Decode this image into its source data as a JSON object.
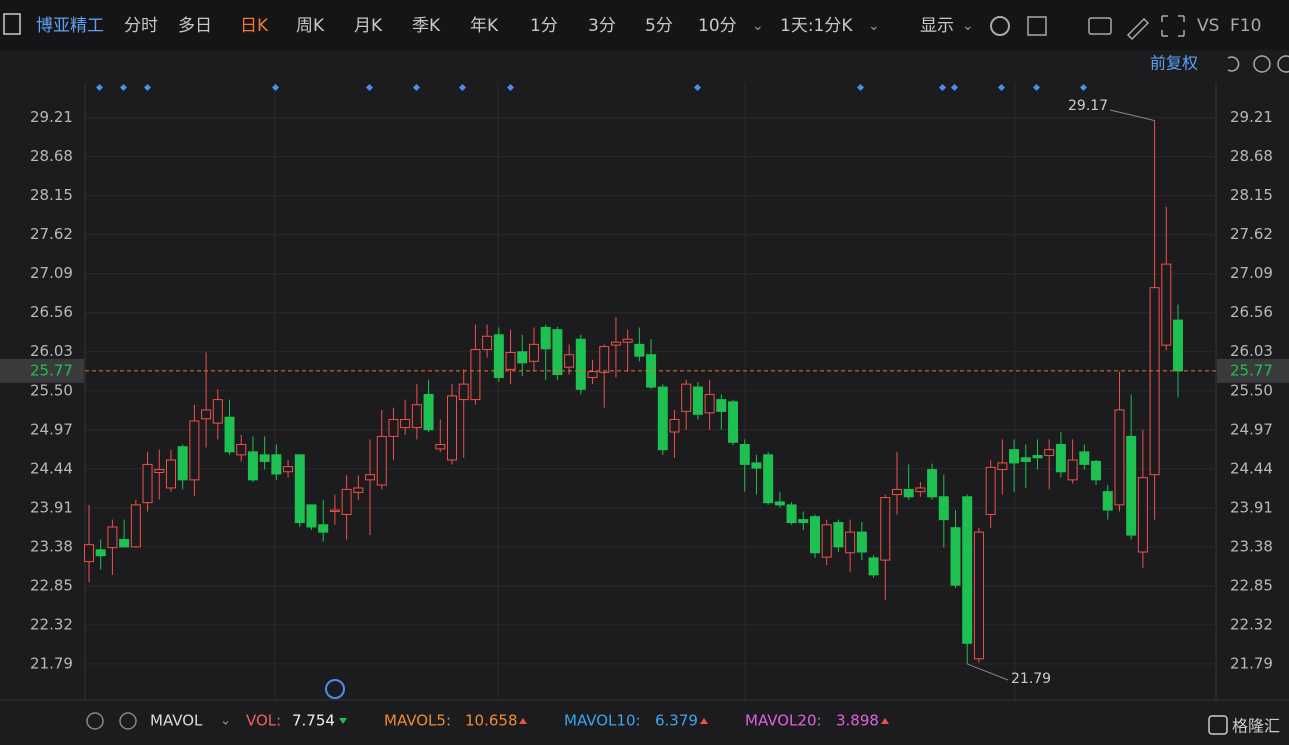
{
  "toolbar": {
    "stock": "博亚精工",
    "tabs": [
      "分时",
      "多日",
      "日K",
      "周K",
      "月K",
      "季K",
      "年K",
      "1分",
      "3分",
      "5分",
      "10分"
    ],
    "range": "1天:1分K",
    "display": "显示",
    "vs": "VS",
    "f10": "F10"
  },
  "adjust": "前复权",
  "chart_data": {
    "type": "candlestick",
    "open": [
      23.18,
      23.34,
      23.37,
      23.48,
      23.38,
      23.98,
      24.39,
      24.18,
      24.74,
      24.29,
      25.12,
      25.06,
      25.14,
      24.63,
      24.67,
      24.63,
      24.63,
      24.4,
      24.63,
      23.95,
      23.68,
      23.86,
      23.82,
      24.12,
      24.29,
      24.22,
      24.88,
      25.0,
      25.0,
      25.45,
      24.71,
      24.56,
      25.38,
      25.38,
      26.06,
      26.26,
      25.79,
      26.03,
      25.9,
      26.36,
      26.33,
      25.82,
      26.2,
      25.68,
      25.75,
      26.12,
      26.16,
      26.13,
      25.99,
      25.55,
      24.94,
      25.22,
      25.55,
      25.2,
      25.38,
      25.35,
      24.77,
      24.52,
      24.63,
      23.99,
      23.95,
      23.75,
      23.79,
      23.24,
      23.71,
      23.3,
      23.58,
      23.23,
      23.2,
      24.09,
      24.16,
      24.13,
      24.43,
      24.06,
      23.64,
      24.06,
      21.86,
      23.82,
      24.43,
      24.7,
      24.59,
      24.62,
      24.62,
      24.77,
      24.29,
      24.67,
      24.54,
      24.13,
      23.95,
      24.88,
      23.31,
      24.36,
      26.12,
      26.46
    ],
    "high": [
      23.95,
      23.48,
      23.75,
      23.75,
      24.02,
      24.67,
      24.7,
      24.7,
      24.77,
      25.31,
      26.02,
      25.52,
      25.38,
      24.9,
      24.88,
      24.88,
      24.77,
      24.56,
      24.63,
      23.95,
      24.02,
      24.09,
      24.35,
      24.35,
      24.84,
      25.24,
      25.27,
      25.38,
      25.59,
      25.65,
      25.11,
      25.59,
      25.79,
      26.4,
      26.4,
      26.36,
      26.33,
      26.26,
      26.36,
      26.4,
      26.37,
      26.13,
      26.26,
      25.92,
      26.13,
      26.5,
      26.33,
      26.36,
      26.2,
      25.59,
      25.24,
      25.65,
      25.62,
      25.65,
      25.45,
      25.38,
      24.84,
      24.63,
      24.67,
      24.13,
      23.99,
      23.86,
      23.82,
      23.75,
      23.75,
      23.75,
      23.72,
      23.27,
      24.09,
      24.67,
      24.5,
      24.26,
      24.51,
      24.36,
      23.88,
      24.09,
      23.64,
      24.56,
      24.84,
      24.84,
      24.77,
      24.84,
      24.84,
      24.94,
      24.84,
      24.77,
      24.56,
      24.22,
      25.76,
      25.45,
      24.97,
      29.17,
      28.0,
      26.67
    ],
    "low": [
      22.9,
      23.07,
      23.0,
      23.37,
      23.37,
      23.86,
      24.02,
      24.13,
      24.16,
      24.07,
      24.73,
      24.84,
      24.63,
      24.54,
      24.26,
      24.43,
      24.29,
      24.32,
      23.65,
      23.61,
      23.45,
      23.68,
      23.48,
      24.02,
      23.54,
      24.16,
      24.56,
      24.9,
      24.84,
      24.94,
      24.67,
      24.5,
      24.59,
      25.31,
      25.95,
      25.62,
      25.59,
      25.7,
      25.76,
      25.65,
      25.65,
      25.72,
      25.45,
      25.59,
      25.27,
      25.68,
      25.76,
      25.9,
      25.52,
      24.63,
      24.59,
      24.97,
      25.11,
      24.97,
      24.97,
      24.76,
      24.13,
      24.09,
      23.95,
      23.91,
      23.68,
      23.61,
      23.23,
      23.13,
      23.31,
      23.04,
      23.2,
      22.96,
      22.66,
      23.82,
      24.02,
      24.06,
      24.02,
      23.37,
      22.82,
      21.79,
      21.81,
      23.64,
      24.09,
      24.13,
      24.18,
      24.43,
      24.16,
      24.32,
      24.24,
      24.43,
      24.22,
      23.75,
      23.86,
      23.48,
      23.09,
      23.75,
      26.05,
      25.41
    ],
    "close": [
      23.41,
      23.26,
      23.65,
      23.38,
      23.95,
      24.5,
      24.43,
      24.56,
      24.29,
      25.09,
      25.24,
      25.38,
      24.67,
      24.77,
      24.29,
      24.54,
      24.37,
      24.47,
      23.71,
      23.65,
      23.58,
      23.88,
      24.16,
      24.18,
      24.36,
      24.88,
      25.11,
      25.11,
      25.31,
      24.97,
      24.77,
      25.43,
      25.59,
      26.06,
      26.24,
      25.68,
      26.02,
      25.88,
      26.13,
      26.07,
      25.72,
      25.99,
      25.52,
      25.76,
      26.1,
      26.16,
      26.2,
      25.97,
      25.55,
      24.7,
      25.11,
      25.59,
      25.18,
      25.45,
      25.22,
      24.8,
      24.5,
      24.45,
      23.98,
      23.95,
      23.71,
      23.71,
      23.3,
      23.68,
      23.38,
      23.58,
      23.31,
      23.0,
      24.05,
      24.16,
      24.06,
      24.18,
      24.06,
      23.75,
      22.86,
      22.07,
      23.58,
      24.46,
      24.52,
      24.52,
      24.54,
      24.59,
      24.7,
      24.4,
      24.56,
      24.5,
      24.29,
      23.88,
      25.24,
      23.54,
      24.32,
      26.9,
      27.22,
      25.77
    ],
    "up_color": "#f0504a",
    "down_color": "#1fc052",
    "last": 25.77,
    "ylim": [
      21.3,
      29.68
    ],
    "yticks": [
      21.79,
      22.32,
      22.85,
      23.38,
      23.91,
      24.44,
      24.97,
      {
        "value": 25.5,
        "label": "25.50"
      },
      26.03,
      26.56,
      27.09,
      27.62,
      28.15,
      28.68,
      29.21
    ],
    "grid": true
  },
  "indicator": {
    "name": "MAVOL",
    "vol_label": "VOL:",
    "vol": 7.754,
    "ma5_label": "MAVOL5:",
    "ma5": 10.658,
    "ma10_label": "MAVOL10:",
    "ma10": 6.379,
    "ma20_label": "MAVOL20:",
    "ma20": 3.898
  },
  "watermark": "格隆汇"
}
